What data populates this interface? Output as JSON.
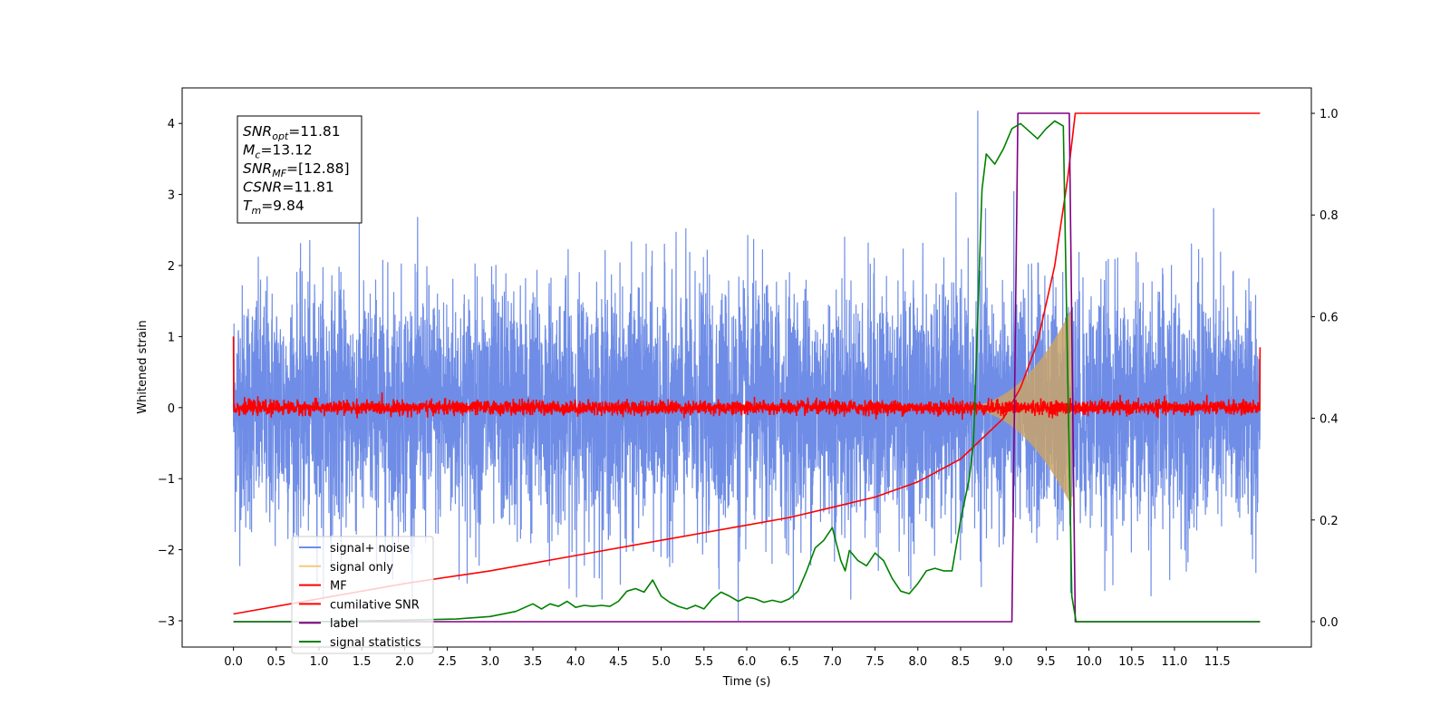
{
  "chart_data": {
    "type": "line",
    "xlabel": "Time (s)",
    "ylabel": "Whitened strain",
    "xlim": [
      -0.6,
      12.6
    ],
    "ylim": [
      -3.37,
      4.5
    ],
    "y2lim": [
      -0.05,
      1.05
    ],
    "grid": false,
    "legend_position": "lower-left",
    "x_ticks": [
      "0.0",
      "0.5",
      "1.0",
      "1.5",
      "2.0",
      "2.5",
      "3.0",
      "3.5",
      "4.0",
      "4.5",
      "5.0",
      "5.5",
      "6.0",
      "6.5",
      "7.0",
      "7.5",
      "8.0",
      "8.5",
      "9.0",
      "9.5",
      "10.0",
      "10.5",
      "11.0",
      "11.5"
    ],
    "y_ticks": [
      "−3",
      "−2",
      "−1",
      "0",
      "1",
      "2",
      "3",
      "4"
    ],
    "y2_ticks": [
      "0.0",
      "0.2",
      "0.4",
      "0.6",
      "0.8",
      "1.0"
    ],
    "annotation": {
      "lines": [
        {
          "sym": "SNR",
          "sub": "opt",
          "text": "=11.81"
        },
        {
          "sym": "M",
          "sub": "c",
          "text": "=13.12"
        },
        {
          "sym": "SNR",
          "sub": "MF",
          "text": "=[12.88]"
        },
        {
          "sym": "CSNR",
          "sub": "",
          "text": "=11.81"
        },
        {
          "sym": "T",
          "sub": "m",
          "text": "=9.84"
        }
      ]
    },
    "series": [
      {
        "name": "signal+ noise",
        "color": "#6f8de6",
        "axis": "left",
        "x_range": [
          0,
          12
        ],
        "amplitude_sigma": 0.85,
        "extremes": {
          "max": 4.18,
          "max_at": 8.7,
          "min": -3.0,
          "min_at": 5.9
        }
      },
      {
        "name": "signal only",
        "color": "#f5c97a",
        "axis": "left",
        "chirp_start": 8.4,
        "chirp_end": 9.8,
        "peak_amplitude": 1.4
      },
      {
        "name": "MF",
        "color": "#ff0000",
        "axis": "left",
        "x_range": [
          0,
          12
        ],
        "baseline": 0.0,
        "noise_sigma": 0.05,
        "start_value": 1.0,
        "end_value": 0.85
      },
      {
        "name": "cumilative SNR",
        "color": "#ff0000",
        "axis": "right",
        "x": [
          0,
          1,
          2,
          3,
          4,
          5,
          6,
          6.5,
          7,
          7.5,
          8,
          8.5,
          9,
          9.2,
          9.4,
          9.6,
          9.75,
          9.84,
          12
        ],
        "y": [
          0.015,
          0.045,
          0.075,
          0.1,
          0.13,
          0.16,
          0.19,
          0.205,
          0.225,
          0.245,
          0.275,
          0.32,
          0.4,
          0.46,
          0.55,
          0.7,
          0.87,
          1.0,
          1.0
        ]
      },
      {
        "name": "label",
        "color": "#800080",
        "axis": "right",
        "x": [
          0,
          9.1,
          9.17,
          9.77,
          9.84,
          12
        ],
        "y": [
          0,
          0,
          1,
          1,
          0,
          0
        ]
      },
      {
        "name": "signal statistics",
        "color": "#008000",
        "axis": "right",
        "x": [
          0,
          1,
          2,
          2.6,
          3,
          3.3,
          3.5,
          3.6,
          3.7,
          3.8,
          3.9,
          4.0,
          4.1,
          4.2,
          4.3,
          4.4,
          4.5,
          4.6,
          4.7,
          4.8,
          4.9,
          5.0,
          5.1,
          5.2,
          5.3,
          5.4,
          5.5,
          5.6,
          5.7,
          5.8,
          5.9,
          6.0,
          6.1,
          6.2,
          6.3,
          6.4,
          6.5,
          6.6,
          6.7,
          6.8,
          6.9,
          7.0,
          7.1,
          7.15,
          7.2,
          7.3,
          7.4,
          7.5,
          7.6,
          7.7,
          7.8,
          7.9,
          8.0,
          8.1,
          8.2,
          8.3,
          8.4,
          8.5,
          8.6,
          8.65,
          8.7,
          8.75,
          8.8,
          8.9,
          9.0,
          9.1,
          9.2,
          9.3,
          9.4,
          9.5,
          9.6,
          9.7,
          9.75,
          9.8,
          9.85,
          9.9,
          10.0,
          12
        ],
        "y": [
          0,
          0,
          0.003,
          0.005,
          0.01,
          0.02,
          0.035,
          0.025,
          0.035,
          0.03,
          0.04,
          0.028,
          0.032,
          0.03,
          0.032,
          0.03,
          0.04,
          0.06,
          0.065,
          0.058,
          0.082,
          0.05,
          0.038,
          0.03,
          0.025,
          0.032,
          0.025,
          0.045,
          0.058,
          0.05,
          0.04,
          0.048,
          0.045,
          0.038,
          0.042,
          0.038,
          0.045,
          0.06,
          0.1,
          0.145,
          0.16,
          0.185,
          0.12,
          0.1,
          0.14,
          0.12,
          0.11,
          0.135,
          0.12,
          0.085,
          0.06,
          0.055,
          0.075,
          0.1,
          0.105,
          0.1,
          0.1,
          0.2,
          0.28,
          0.35,
          0.6,
          0.85,
          0.92,
          0.9,
          0.93,
          0.97,
          0.98,
          0.965,
          0.95,
          0.97,
          0.985,
          0.975,
          0.5,
          0.05,
          0.0,
          0.0,
          0.0,
          0.0
        ]
      }
    ]
  }
}
